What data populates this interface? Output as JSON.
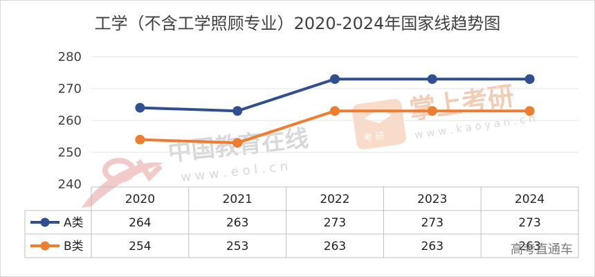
{
  "chart_data": {
    "type": "line",
    "title": "工学（不含工学照顾专业）2020-2024年国家线趋势图",
    "categories": [
      "2020",
      "2021",
      "2022",
      "2023",
      "2024"
    ],
    "series": [
      {
        "name": "A类",
        "values": [
          264,
          263,
          273,
          273,
          273
        ],
        "color": "#2f4f8f"
      },
      {
        "name": "B类",
        "values": [
          254,
          253,
          263,
          263,
          263
        ],
        "color": "#ed7d31"
      }
    ],
    "ylim": [
      240,
      280
    ],
    "yticks": [
      "280",
      "270",
      "260",
      "250",
      "240"
    ],
    "grid": true,
    "legend": "data-table",
    "data_table": true
  },
  "watermarks": {
    "eol_cn": "中国教育在线",
    "eol_url": "w w w . e o l . c n",
    "kaoyan_cn": "掌上考研",
    "kaoyan_badge": "考 研",
    "kaoyan_url": "w w w . k a o y a n . c n",
    "footer": "高考直通车"
  }
}
